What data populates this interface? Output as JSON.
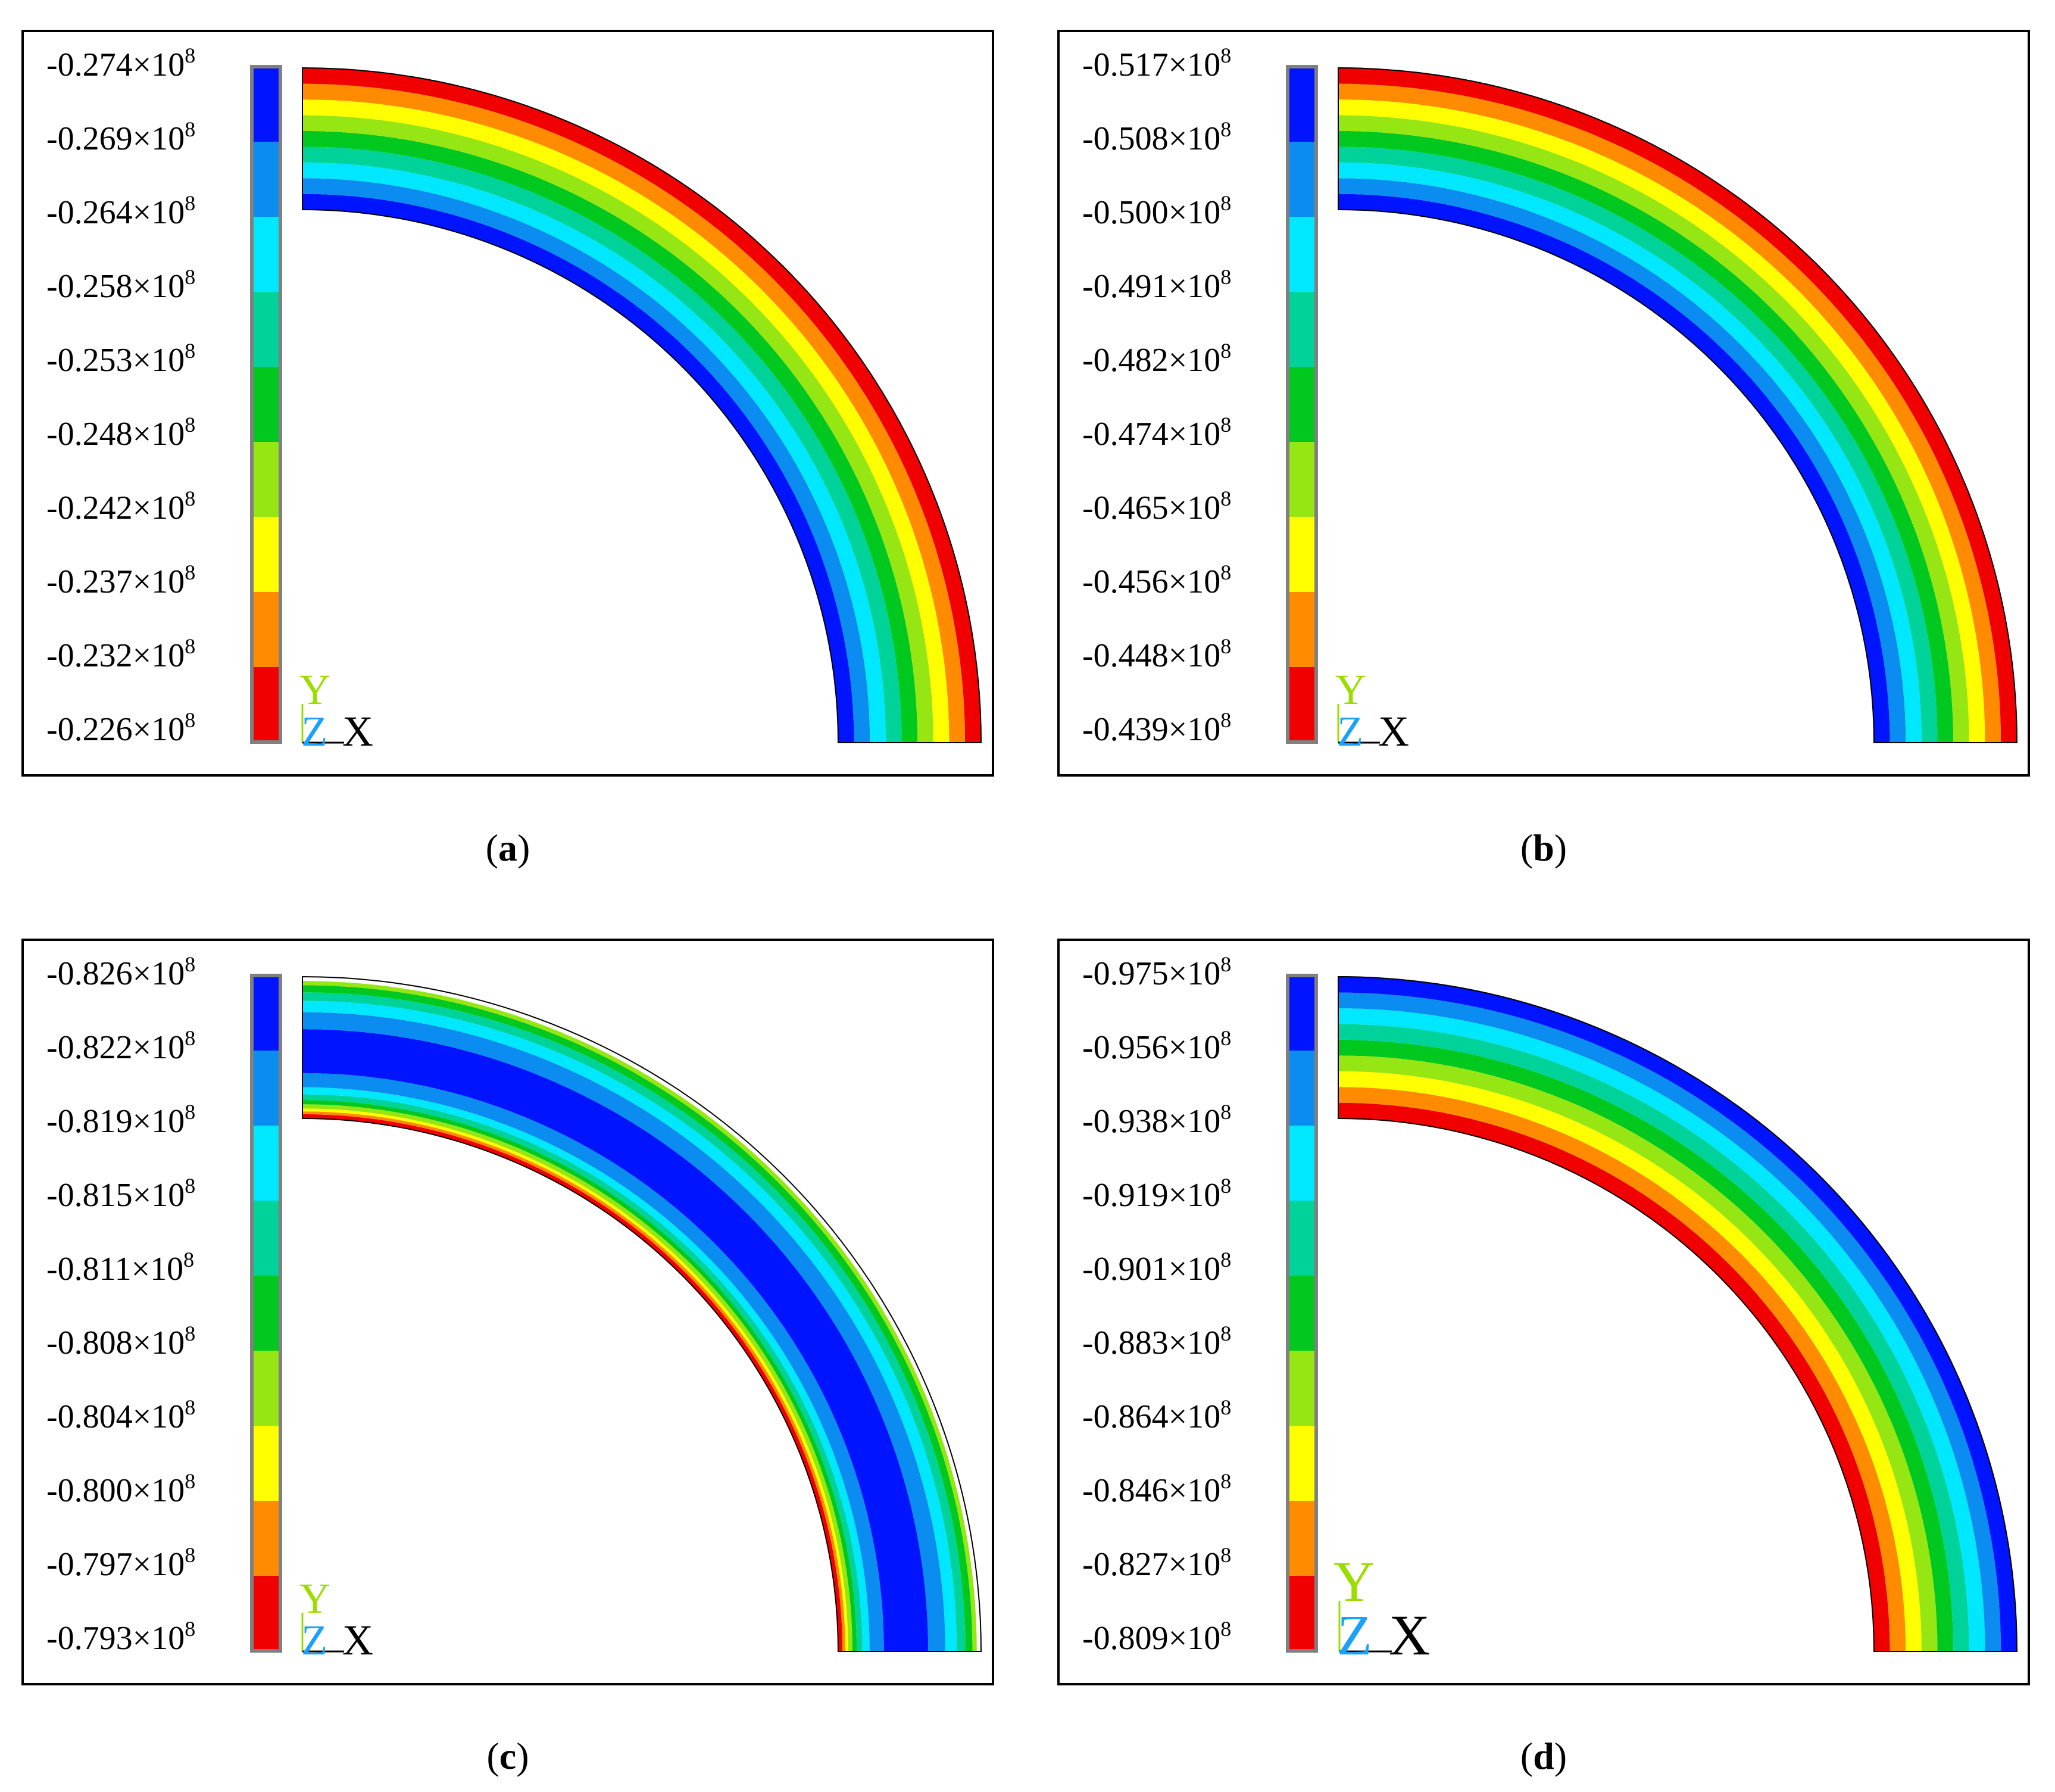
{
  "colors": {
    "legend_scale_top_to_bottom": [
      "#0014ff",
      "#0a8cf0",
      "#00e8ff",
      "#00d39a",
      "#00c81e",
      "#96e614",
      "#ffff00",
      "#ff8c00",
      "#f00000"
    ],
    "frame": "#000000",
    "colorbar_border": "#808080",
    "axis_y": "#9cdd00",
    "axis_z": "#1aa0ff",
    "axis_x": "#000000"
  },
  "panels": [
    {
      "id": "a",
      "label": "a",
      "legend_ticks": [
        "-0.274×10",
        "-0.269×10",
        "-0.264×10",
        "-0.258×10",
        "-0.253×10",
        "-0.248×10",
        "-0.242×10",
        "-0.237×10",
        "-0.232×10",
        "-0.226×10"
      ],
      "exponent": "8",
      "axis_triad": {
        "y": "Y",
        "z": "Z",
        "x": "X"
      },
      "bands_inner_to_outer": [
        {
          "color": "#0014ff",
          "frac": 0.111
        },
        {
          "color": "#0a8cf0",
          "frac": 0.111
        },
        {
          "color": "#00e8ff",
          "frac": 0.111
        },
        {
          "color": "#00d39a",
          "frac": 0.111
        },
        {
          "color": "#00c81e",
          "frac": 0.111
        },
        {
          "color": "#96e614",
          "frac": 0.111
        },
        {
          "color": "#ffff00",
          "frac": 0.111
        },
        {
          "color": "#ff8c00",
          "frac": 0.111
        },
        {
          "color": "#f00000",
          "frac": 0.112
        }
      ]
    },
    {
      "id": "b",
      "label": "b",
      "legend_ticks": [
        "-0.517×10",
        "-0.508×10",
        "-0.500×10",
        "-0.491×10",
        "-0.482×10",
        "-0.474×10",
        "-0.465×10",
        "-0.456×10",
        "-0.448×10",
        "-0.439×10"
      ],
      "exponent": "8",
      "axis_triad": {
        "y": "Y",
        "z": "Z",
        "x": "X"
      },
      "bands_inner_to_outer": [
        {
          "color": "#0014ff",
          "frac": 0.111
        },
        {
          "color": "#0a8cf0",
          "frac": 0.111
        },
        {
          "color": "#00e8ff",
          "frac": 0.111
        },
        {
          "color": "#00d39a",
          "frac": 0.111
        },
        {
          "color": "#00c81e",
          "frac": 0.111
        },
        {
          "color": "#96e614",
          "frac": 0.111
        },
        {
          "color": "#ffff00",
          "frac": 0.111
        },
        {
          "color": "#ff8c00",
          "frac": 0.111
        },
        {
          "color": "#f00000",
          "frac": 0.112
        }
      ]
    },
    {
      "id": "c",
      "label": "c",
      "legend_ticks": [
        "-0.826×10",
        "-0.822×10",
        "-0.819×10",
        "-0.815×10",
        "-0.811×10",
        "-0.808×10",
        "-0.804×10",
        "-0.800×10",
        "-0.797×10",
        "-0.793×10"
      ],
      "exponent": "8",
      "axis_triad": {
        "y": "Y",
        "z": "Z",
        "x": "X"
      },
      "bands_inner_to_outer": [
        {
          "color": "#f00000",
          "frac": 0.03
        },
        {
          "color": "#ff8c00",
          "frac": 0.02
        },
        {
          "color": "#ffff00",
          "frac": 0.02
        },
        {
          "color": "#96e614",
          "frac": 0.03
        },
        {
          "color": "#00c81e",
          "frac": 0.03
        },
        {
          "color": "#00d39a",
          "frac": 0.04
        },
        {
          "color": "#00e8ff",
          "frac": 0.05
        },
        {
          "color": "#0a8cf0",
          "frac": 0.1
        },
        {
          "color": "#0014ff",
          "frac": 0.31
        },
        {
          "color": "#0a8cf0",
          "frac": 0.12
        },
        {
          "color": "#00e8ff",
          "frac": 0.08
        },
        {
          "color": "#00d39a",
          "frac": 0.06
        },
        {
          "color": "#00c81e",
          "frac": 0.05
        },
        {
          "color": "#96e614",
          "frac": 0.03
        }
      ]
    },
    {
      "id": "d",
      "label": "d",
      "legend_ticks": [
        "-0.975×10",
        "-0.956×10",
        "-0.938×10",
        "-0.919×10",
        "-0.901×10",
        "-0.883×10",
        "-0.864×10",
        "-0.846×10",
        "-0.827×10",
        "-0.809×10"
      ],
      "exponent": "8",
      "axis_triad": {
        "y": "Y",
        "z": "Z",
        "x": "X"
      },
      "bands_inner_to_outer": [
        {
          "color": "#f00000",
          "frac": 0.111
        },
        {
          "color": "#ff8c00",
          "frac": 0.111
        },
        {
          "color": "#ffff00",
          "frac": 0.111
        },
        {
          "color": "#96e614",
          "frac": 0.111
        },
        {
          "color": "#00c81e",
          "frac": 0.111
        },
        {
          "color": "#00d39a",
          "frac": 0.111
        },
        {
          "color": "#00e8ff",
          "frac": 0.111
        },
        {
          "color": "#0a8cf0",
          "frac": 0.111
        },
        {
          "color": "#0014ff",
          "frac": 0.112
        }
      ]
    }
  ]
}
